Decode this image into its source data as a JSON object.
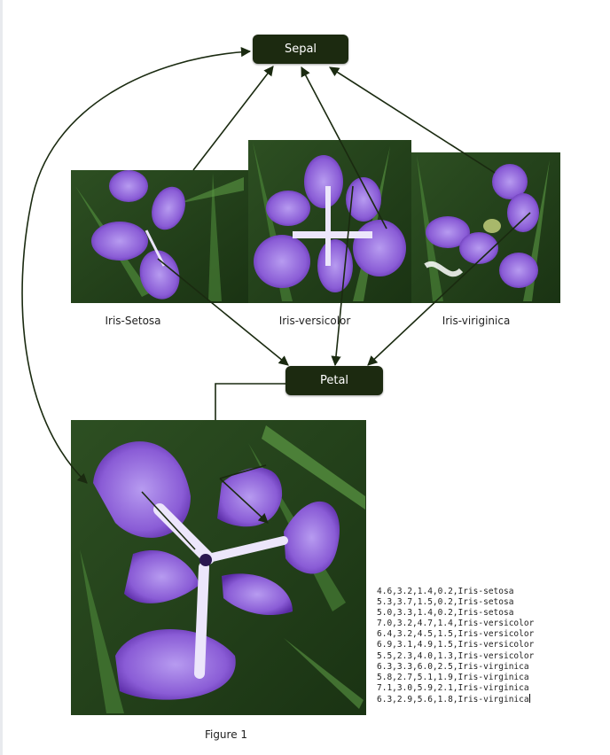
{
  "diagram": {
    "sepal_label": "Sepal",
    "petal_label": "Petal",
    "captions": [
      "Iris-Setosa",
      "Iris-versicolor",
      "Iris-viriginica"
    ],
    "figure_caption": "Figure 1",
    "box_color": "#1c2a10",
    "arrow_color": "#1a2a10",
    "flower_colors": {
      "purple": "#8a5cd6",
      "purple_dark": "#5a2ba6",
      "purple_light": "#b79bf0",
      "white_vein": "#ece6fb",
      "leaf_green": "#3d6b2d",
      "leaf_dark": "#1f3d18"
    }
  },
  "data_lines": [
    "4.6,3.2,1.4,0.2,Iris-setosa",
    "5.3,3.7,1.5,0.2,Iris-setosa",
    "5.0,3.3,1.4,0.2,Iris-setosa",
    "7.0,3.2,4.7,1.4,Iris-versicolor",
    "6.4,3.2,4.5,1.5,Iris-versicolor",
    "6.9,3.1,4.9,1.5,Iris-versicolor",
    "5.5,2.3,4.0,1.3,Iris-versicolor",
    "6.3,3.3,6.0,2.5,Iris-virginica",
    "5.8,2.7,5.1,1.9,Iris-virginica",
    "7.1,3.0,5.9,2.1,Iris-virginica",
    "6.3,2.9,5.6,1.8,Iris-virginica"
  ]
}
